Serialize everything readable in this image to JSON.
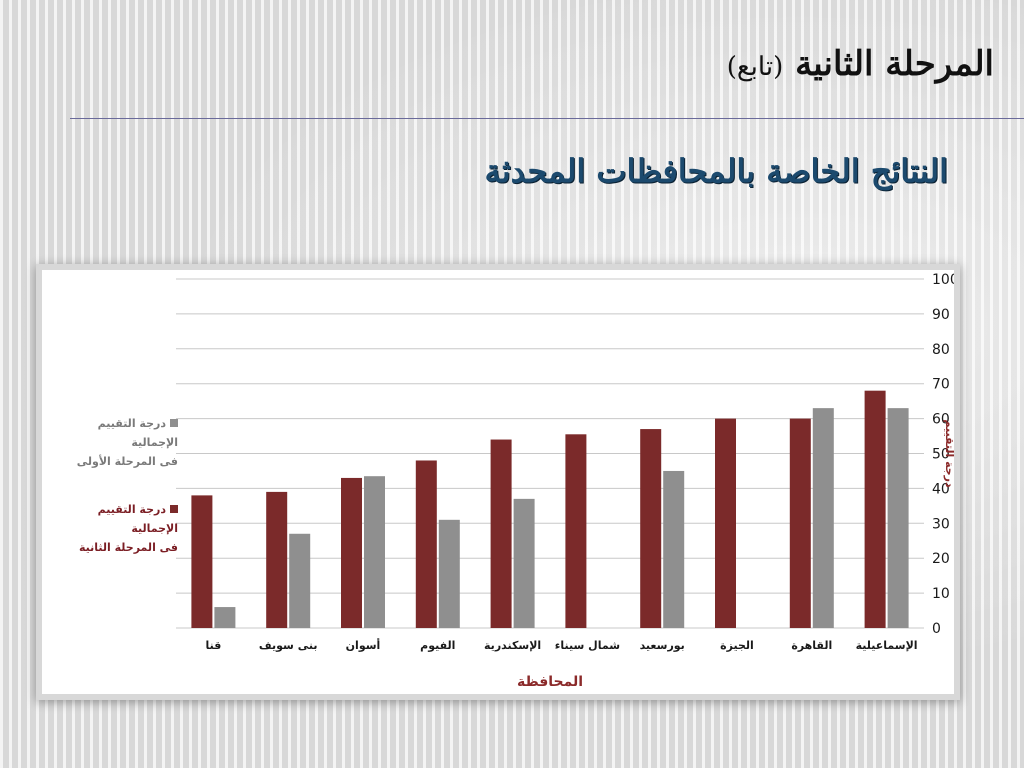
{
  "slide": {
    "title": "المرحلة الثانية",
    "title_paren": "(تابع)",
    "subtitle": "النتائج الخاصة بالمحافظات المحدثة"
  },
  "colors": {
    "phase2": "#7b2a2a",
    "phase1": "#8f8f8f",
    "grid": "#c8c8c8",
    "axis_label": "#8b2a2a"
  },
  "chart_data": {
    "type": "bar",
    "xlabel": "المحافظة",
    "ylabel": "درجة التقييم",
    "ylim": [
      0,
      100
    ],
    "yticks": [
      0,
      10,
      20,
      30,
      40,
      50,
      60,
      70,
      80,
      90,
      100
    ],
    "grid": true,
    "legend_position": "left",
    "categories": [
      "قنا",
      "بنى سويف",
      "أسوان",
      "الفيوم",
      "الإسكندرية",
      "شمال سيناء",
      "بورسعيد",
      "الجيزة",
      "القاهرة",
      "الإسماعيلية"
    ],
    "series": [
      {
        "name": "درجة التقييم الإجمالية فى المرحلة الثانية",
        "legend_lines": [
          "درجة التقييم الإجمالية",
          "فى المرحلة الثانية"
        ],
        "color": "#7b2a2a",
        "values": [
          38,
          39,
          43,
          48,
          54,
          55.5,
          57,
          60,
          60,
          68
        ]
      },
      {
        "name": "درجة التقييم الإجمالية فى المرحلة الأولى",
        "legend_lines": [
          "درجة التقييم الإجمالية",
          "فى المرحلة الأولى"
        ],
        "color": "#8f8f8f",
        "values": [
          6,
          27,
          43.5,
          31,
          37,
          null,
          45,
          null,
          63,
          63
        ]
      }
    ]
  }
}
